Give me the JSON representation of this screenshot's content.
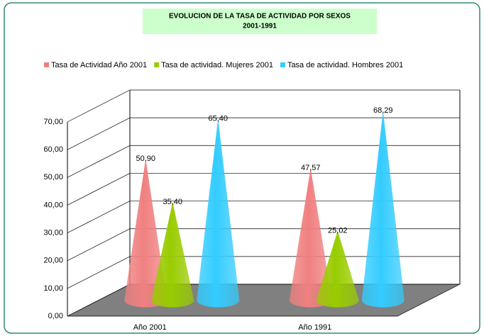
{
  "chart_data": {
    "type": "cone3d",
    "title": "EVOLUCION DE LA TASA DE ACTIVIDAD POR SEXOS",
    "subtitle": "2001-1991",
    "categories": [
      "Año 2001",
      "Año 1991"
    ],
    "series": [
      {
        "name": "Tasa de Actividad Año 2001",
        "color": "#f08080",
        "values": [
          50.9,
          47.57
        ],
        "value_labels": [
          "50,90",
          "47,57"
        ]
      },
      {
        "name": "Tasa de actividad. Mujeres 2001",
        "color": "#99cc00",
        "values": [
          35.4,
          25.02
        ],
        "value_labels": [
          "35,40",
          "25,02"
        ]
      },
      {
        "name": "Tasa de actividad. Hombres 2001",
        "color": "#33ccff",
        "values": [
          65.4,
          68.29
        ],
        "value_labels": [
          "65,40",
          "68,29"
        ]
      }
    ],
    "ylim": [
      0,
      70
    ],
    "yticks": [
      {
        "value": 0,
        "label": "0,00"
      },
      {
        "value": 10,
        "label": "10,00"
      },
      {
        "value": 20,
        "label": "20,00"
      },
      {
        "value": 30,
        "label": "30,00"
      },
      {
        "value": 40,
        "label": "40,00"
      },
      {
        "value": 50,
        "label": "50,00"
      },
      {
        "value": 60,
        "label": "60,00"
      },
      {
        "value": 70,
        "label": "70,00"
      }
    ],
    "grid": true,
    "legend": "top"
  }
}
